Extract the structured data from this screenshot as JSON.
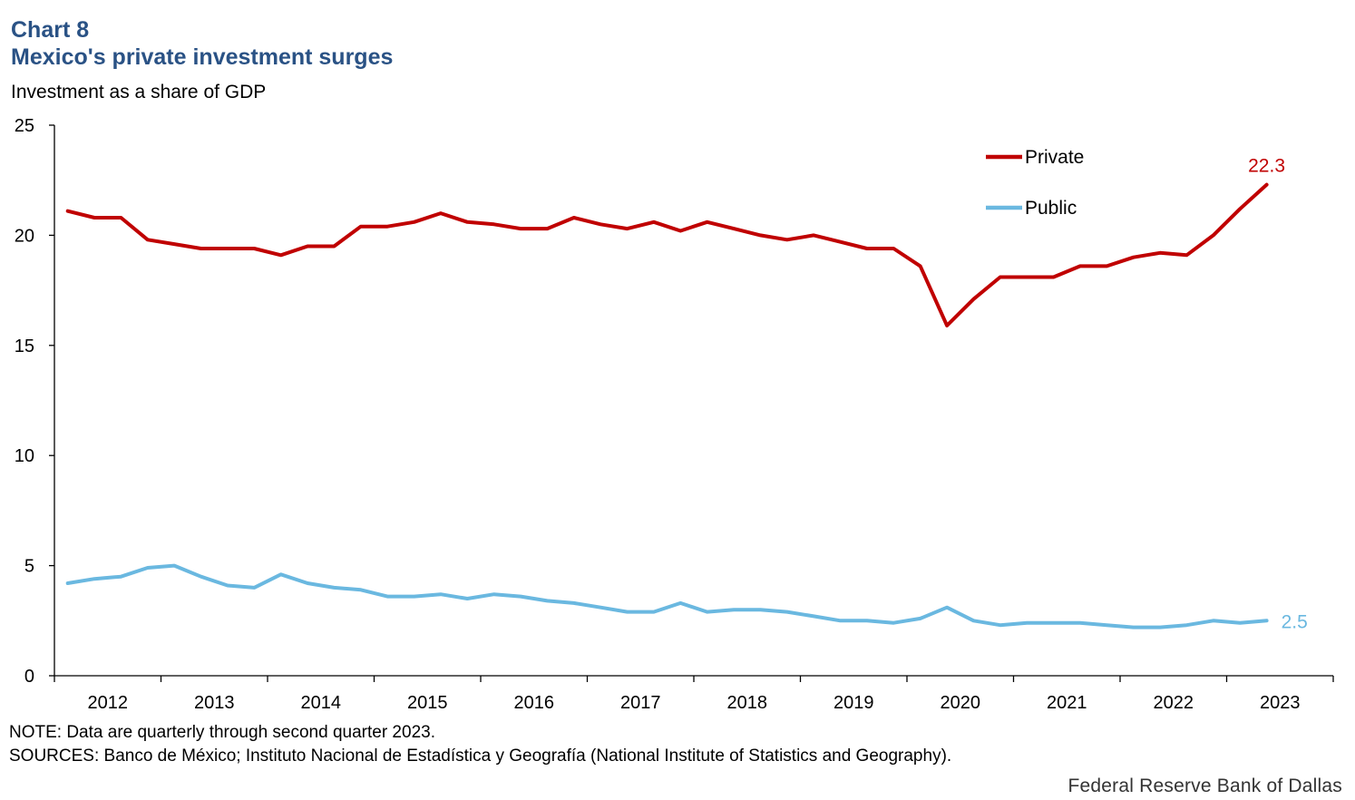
{
  "header": {
    "chart_number": "Chart 8",
    "title": "Mexico's private investment surges",
    "subtitle": "Investment as a share of GDP"
  },
  "footer": {
    "note": "NOTE: Data are quarterly through second quarter 2023.",
    "sources": "SOURCES: Banco de México; Instituto Nacional de Estadística y Geografía (National Institute of Statistics and Geography).",
    "credit": "Federal Reserve Bank of Dallas"
  },
  "colors": {
    "private": "#c00000",
    "public": "#6ab8e0",
    "title": "#2a5285"
  },
  "chart_data": {
    "type": "line",
    "title": "Mexico's private investment surges",
    "ylabel": "Investment as a share of GDP",
    "ylim": [
      0,
      25
    ],
    "yticks": [
      0,
      5,
      10,
      15,
      20,
      25
    ],
    "years": [
      "2012",
      "2013",
      "2014",
      "2015",
      "2016",
      "2017",
      "2018",
      "2019",
      "2020",
      "2021",
      "2022",
      "2023"
    ],
    "frequency": "quarterly, 2012 Q1 – 2023 Q2",
    "legend": [
      "Private",
      "Public"
    ],
    "series": [
      {
        "name": "Private",
        "end_label": "22.3",
        "values": [
          21.1,
          20.8,
          20.8,
          19.8,
          19.6,
          19.4,
          19.4,
          19.4,
          19.1,
          19.5,
          19.5,
          20.4,
          20.4,
          20.6,
          21.0,
          20.6,
          20.5,
          20.3,
          20.3,
          20.8,
          20.5,
          20.3,
          20.6,
          20.2,
          20.6,
          20.3,
          20.0,
          19.8,
          20.0,
          19.7,
          19.4,
          19.4,
          18.6,
          15.9,
          17.1,
          18.1,
          18.1,
          18.1,
          18.6,
          18.6,
          19.0,
          19.2,
          19.1,
          20.0,
          21.2,
          22.3
        ]
      },
      {
        "name": "Public",
        "end_label": "2.5",
        "values": [
          4.2,
          4.4,
          4.5,
          4.9,
          5.0,
          4.5,
          4.1,
          4.0,
          4.6,
          4.2,
          4.0,
          3.9,
          3.6,
          3.6,
          3.7,
          3.5,
          3.7,
          3.6,
          3.4,
          3.3,
          3.1,
          2.9,
          2.9,
          3.3,
          2.9,
          3.0,
          3.0,
          2.9,
          2.7,
          2.5,
          2.5,
          2.4,
          2.6,
          3.1,
          2.5,
          2.3,
          2.4,
          2.4,
          2.4,
          2.3,
          2.2,
          2.2,
          2.3,
          2.5,
          2.4,
          2.5
        ]
      }
    ]
  }
}
